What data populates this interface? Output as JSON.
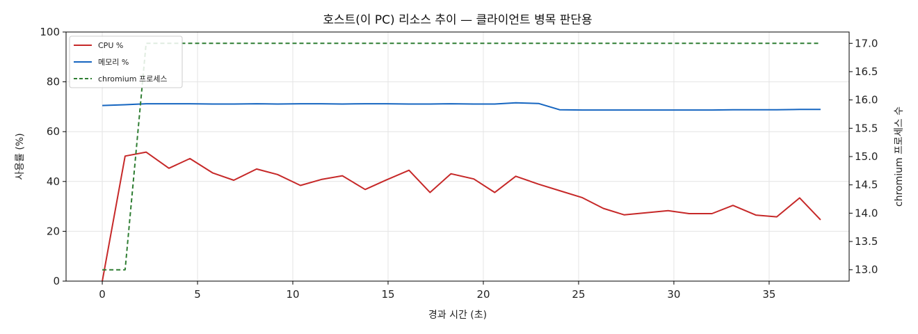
{
  "chart_data": {
    "type": "line",
    "title": "호스트(이 PC) 리소스 추이 — 클라이언트 병목 판단용",
    "xlabel": "경과 시간 (초)",
    "ylabel": "사용률 (%)",
    "y2label": "chromium 프로세스 수",
    "xlim": [
      -1.9,
      39.2
    ],
    "ylim": [
      0,
      100
    ],
    "y2lim": [
      12.8,
      17.2
    ],
    "xticks": [
      0,
      5,
      10,
      15,
      20,
      25,
      30,
      35
    ],
    "yticks": [
      0,
      20,
      40,
      60,
      80,
      100
    ],
    "y2ticks": [
      13.0,
      13.5,
      14.0,
      14.5,
      15.0,
      15.5,
      16.0,
      16.5,
      17.0
    ],
    "grid": true,
    "legend_position": "top-left",
    "series": [
      {
        "name": "CPU %",
        "axis": "left",
        "color": "#c62828",
        "style": "solid",
        "x": [
          0,
          1.2,
          2.3,
          3.5,
          4.6,
          5.8,
          6.9,
          8.1,
          9.2,
          10.4,
          11.5,
          12.6,
          13.8,
          14.9,
          16.1,
          17.2,
          18.3,
          19.5,
          20.6,
          21.7,
          22.9,
          24.0,
          25.2,
          26.3,
          27.4,
          28.6,
          29.7,
          30.8,
          32.0,
          33.1,
          34.3,
          35.4,
          36.6,
          37.7
        ],
        "y": [
          0,
          50.2,
          51.8,
          45.3,
          49.2,
          43.4,
          40.5,
          45.0,
          42.8,
          38.4,
          40.8,
          42.3,
          36.8,
          40.6,
          44.5,
          35.6,
          43.1,
          41.0,
          35.6,
          42.1,
          38.9,
          36.3,
          33.5,
          29.2,
          26.6,
          27.5,
          28.3,
          27.1,
          27.1,
          30.4,
          26.5,
          25.8,
          33.4,
          24.6
        ]
      },
      {
        "name": "메모리 %",
        "axis": "left",
        "color": "#1565c0",
        "style": "solid",
        "x": [
          0,
          1.2,
          2.3,
          3.5,
          4.6,
          5.8,
          6.9,
          8.1,
          9.2,
          10.4,
          11.5,
          12.6,
          13.8,
          14.9,
          16.1,
          17.2,
          18.3,
          19.5,
          20.6,
          21.7,
          22.9,
          24.0,
          25.2,
          26.3,
          27.4,
          28.6,
          29.7,
          30.8,
          32.0,
          33.1,
          34.3,
          35.4,
          36.6,
          37.7
        ],
        "y": [
          70.5,
          70.8,
          71.2,
          71.2,
          71.2,
          71.1,
          71.1,
          71.2,
          71.1,
          71.2,
          71.2,
          71.1,
          71.2,
          71.2,
          71.1,
          71.1,
          71.2,
          71.1,
          71.1,
          71.6,
          71.3,
          68.8,
          68.7,
          68.7,
          68.7,
          68.7,
          68.7,
          68.7,
          68.7,
          68.8,
          68.8,
          68.8,
          68.9,
          68.9
        ]
      },
      {
        "name": "chromium 프로세스",
        "axis": "right",
        "color": "#2e7d32",
        "style": "dashed",
        "x": [
          0,
          1.2,
          2.3,
          3.5,
          4.6,
          5.8,
          6.9,
          8.1,
          9.2,
          10.4,
          11.5,
          12.6,
          13.8,
          14.9,
          16.1,
          17.2,
          18.3,
          19.5,
          20.6,
          21.7,
          22.9,
          24.0,
          25.2,
          26.3,
          27.4,
          28.6,
          29.7,
          30.8,
          32.0,
          33.1,
          34.3,
          35.4,
          36.6,
          37.7
        ],
        "y": [
          13,
          13,
          17,
          17,
          17,
          17,
          17,
          17,
          17,
          17,
          17,
          17,
          17,
          17,
          17,
          17,
          17,
          17,
          17,
          17,
          17,
          17,
          17,
          17,
          17,
          17,
          17,
          17,
          17,
          17,
          17,
          17,
          17,
          17
        ]
      }
    ]
  }
}
